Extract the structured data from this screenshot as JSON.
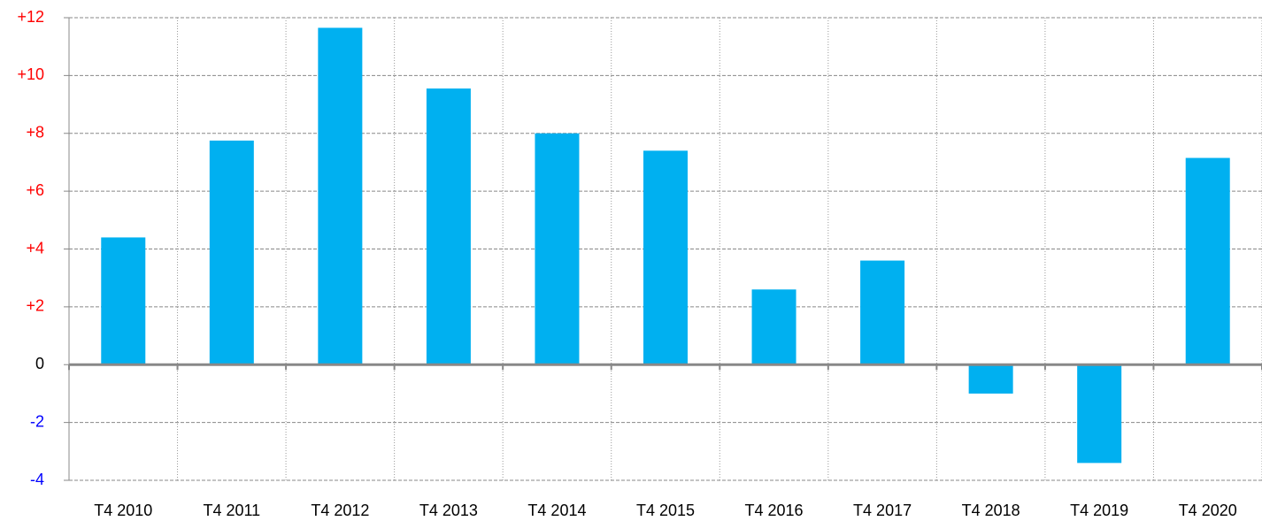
{
  "chart_data": {
    "type": "bar",
    "categories": [
      "T4 2010",
      "T4 2011",
      "T4 2012",
      "T4 2013",
      "T4 2014",
      "T4 2015",
      "T4 2016",
      "T4 2017",
      "T4 2018",
      "T4 2019",
      "T4 2020"
    ],
    "values": [
      4.4,
      7.75,
      11.65,
      9.55,
      8.0,
      7.4,
      2.6,
      3.6,
      -1.0,
      -3.4,
      7.15
    ],
    "color": "#00b0f0",
    "ylim": [
      -4,
      12
    ],
    "yticks": [
      {
        "value": 12,
        "label": "+12"
      },
      {
        "value": 10,
        "label": "+10"
      },
      {
        "value": 8,
        "label": "+8"
      },
      {
        "value": 6,
        "label": "+6"
      },
      {
        "value": 4,
        "label": "+4"
      },
      {
        "value": 2,
        "label": "+2"
      },
      0,
      -2,
      -4
    ],
    "ytick_colors": [
      "#ff0000",
      "#ff0000",
      "#ff0000",
      "#ff0000",
      "#ff0000",
      "#ff0000",
      "#000000",
      "#0000ff",
      "#0000ff"
    ],
    "grid": true
  }
}
